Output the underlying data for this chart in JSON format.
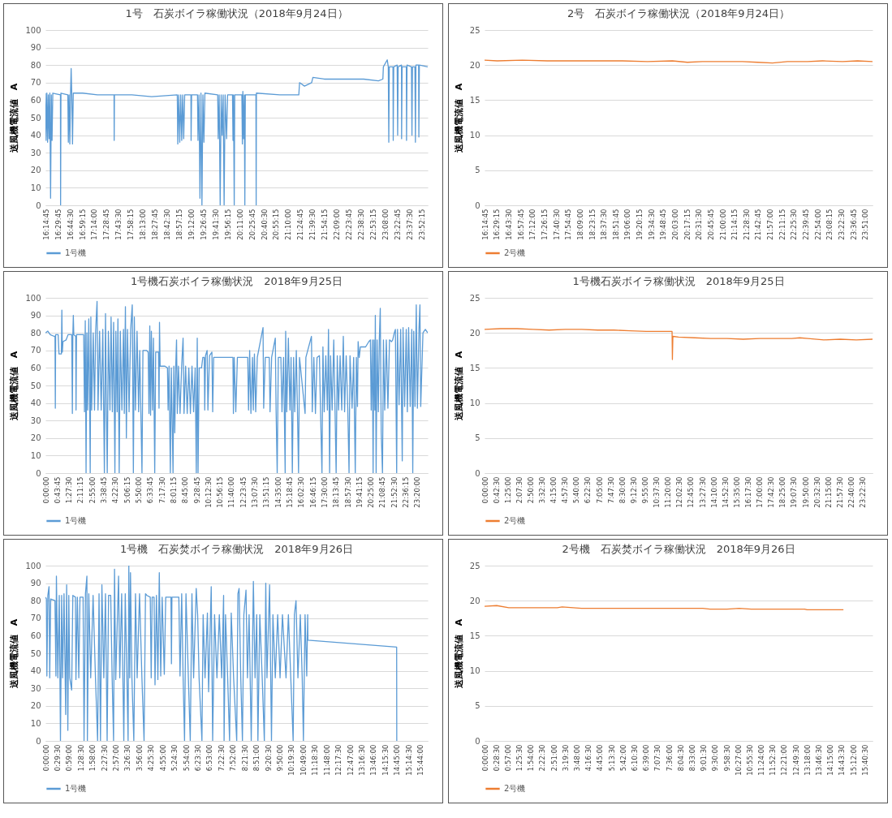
{
  "chart_data": [
    {
      "type": "line",
      "title": "1号　石炭ボイラ稼働状況（2018年9月24日）",
      "ylabel": "送風機電流値　A",
      "grid": "y",
      "legend": "bottom",
      "xlim": [
        16.24583,
        24
      ],
      "ylim": [
        0,
        100
      ],
      "yticks": [
        0,
        10,
        20,
        30,
        40,
        50,
        60,
        70,
        80,
        90,
        100
      ],
      "xticks": [
        {
          "value": 16.24583,
          "label": "16:14:45"
        },
        {
          "value": 16.49583,
          "label": "16:29:45"
        },
        {
          "value": 16.74167,
          "label": "16:44:30"
        },
        {
          "value": 16.9875,
          "label": "16:59:15"
        },
        {
          "value": 17.23333,
          "label": "17:14:00"
        },
        {
          "value": 17.47917,
          "label": "17:28:45"
        },
        {
          "value": 17.725,
          "label": "17:43:30"
        },
        {
          "value": 17.97083,
          "label": "17:58:15"
        },
        {
          "value": 18.21667,
          "label": "18:13:00"
        },
        {
          "value": 18.4625,
          "label": "18:27:45"
        },
        {
          "value": 18.70833,
          "label": "18:42:30"
        },
        {
          "value": 18.95417,
          "label": "18:57:15"
        },
        {
          "value": 19.2,
          "label": "19:12:00"
        },
        {
          "value": 19.44583,
          "label": "19:26:45"
        },
        {
          "value": 19.69167,
          "label": "19:41:30"
        },
        {
          "value": 19.9375,
          "label": "19:56:15"
        },
        {
          "value": 20.18333,
          "label": "20:11:00"
        },
        {
          "value": 20.42917,
          "label": "20:25:45"
        },
        {
          "value": 20.675,
          "label": "20:40:30"
        },
        {
          "value": 20.92083,
          "label": "20:55:15"
        },
        {
          "value": 21.16667,
          "label": "21:10:00"
        },
        {
          "value": 21.4125,
          "label": "21:24:45"
        },
        {
          "value": 21.65833,
          "label": "21:39:30"
        },
        {
          "value": 21.90417,
          "label": "21:54:15"
        },
        {
          "value": 22.15,
          "label": "22:09:00"
        },
        {
          "value": 22.39583,
          "label": "22:23:45"
        },
        {
          "value": 22.64167,
          "label": "22:38:30"
        },
        {
          "value": 22.8875,
          "label": "22:53:15"
        },
        {
          "value": 23.13333,
          "label": "23:08:00"
        },
        {
          "value": 23.37917,
          "label": "23:22:45"
        },
        {
          "value": 23.625,
          "label": "23:37:30"
        },
        {
          "value": 23.87083,
          "label": "23:52:15"
        }
      ],
      "series": [
        {
          "name": "1号機",
          "color": "#5b9bd5",
          "x": [
            16.246,
            16.26,
            16.275,
            16.29,
            16.305,
            16.32,
            16.335,
            16.35,
            16.365,
            16.38,
            16.395,
            16.55,
            16.553,
            16.56,
            16.7,
            16.71,
            16.725,
            16.74,
            16.755,
            16.767,
            16.78,
            16.795,
            16.81,
            17.0,
            17.3,
            17.637,
            17.64,
            17.645,
            18.0,
            18.4,
            18.92,
            18.93,
            18.95,
            18.97,
            18.99,
            19.01,
            19.03,
            19.05,
            19.07,
            19.197,
            19.2,
            19.21,
            19.33,
            19.34,
            19.36,
            19.38,
            19.4,
            19.42,
            19.44,
            19.46,
            19.48,
            19.74,
            19.75,
            19.77,
            19.79,
            19.81,
            19.83,
            19.85,
            19.87,
            19.89,
            19.92,
            19.94,
            20.04,
            20.05,
            20.06,
            20.075,
            20.085,
            20.23,
            20.24,
            20.25,
            20.265,
            20.28,
            20.29,
            20.3,
            20.515,
            20.52,
            20.525,
            21.0,
            21.385,
            21.4,
            21.5,
            21.645,
            21.67,
            21.9,
            22.3,
            22.7,
            23.0,
            23.09,
            23.1,
            23.179,
            23.2,
            23.21,
            23.22,
            23.295,
            23.3,
            23.31,
            23.38,
            23.39,
            23.4,
            23.468,
            23.47,
            23.48,
            23.566,
            23.57,
            23.58,
            23.67,
            23.68,
            23.69,
            23.74,
            23.75,
            23.76,
            23.815,
            23.82,
            23.83,
            24.0
          ],
          "values": [
            64,
            37,
            64,
            36,
            63,
            38,
            64,
            4,
            63,
            37,
            64,
            63,
            0,
            64,
            63,
            36,
            63,
            35,
            64,
            78,
            63,
            35,
            64,
            64,
            63,
            63,
            37,
            63,
            63,
            62,
            63,
            35,
            63,
            36,
            63,
            37,
            63,
            38,
            63,
            63,
            37,
            63,
            63,
            37,
            63,
            4,
            64,
            0,
            63,
            36,
            64,
            63,
            38,
            63,
            0,
            63,
            40,
            63,
            0,
            63,
            38,
            63,
            63,
            37,
            63,
            0,
            63,
            63,
            35,
            65,
            38,
            63,
            0,
            63,
            63,
            0,
            64,
            63,
            63,
            70,
            68,
            70,
            73,
            72,
            72,
            72,
            71,
            72,
            79,
            83,
            79,
            36,
            79,
            79,
            37,
            79,
            80,
            40,
            79,
            80,
            38,
            79,
            79,
            37,
            80,
            79,
            40,
            79,
            79,
            36,
            80,
            80,
            39,
            80,
            79
          ]
        }
      ]
    },
    {
      "type": "line",
      "title": "2号　石炭ボイラ稼働状況（2018年9月24日）",
      "ylabel": "送風機電流値　A",
      "grid": "y",
      "legend": "bottom",
      "xlim": [
        16.24583,
        24
      ],
      "ylim": [
        0,
        25
      ],
      "yticks": [
        0,
        5,
        10,
        15,
        20,
        25
      ],
      "xticks": [
        {
          "value": 16.24583,
          "label": "16:14:45"
        },
        {
          "value": 16.4875,
          "label": "16:29:15"
        },
        {
          "value": 16.725,
          "label": "16:43:30"
        },
        {
          "value": 16.9625,
          "label": "16:57:45"
        },
        {
          "value": 17.2,
          "label": "17:12:00"
        },
        {
          "value": 17.4375,
          "label": "17:26:15"
        },
        {
          "value": 17.675,
          "label": "17:40:30"
        },
        {
          "value": 17.9125,
          "label": "17:54:45"
        },
        {
          "value": 18.15,
          "label": "18:09:00"
        },
        {
          "value": 18.3875,
          "label": "18:23:15"
        },
        {
          "value": 18.625,
          "label": "18:37:30"
        },
        {
          "value": 18.8625,
          "label": "18:51:45"
        },
        {
          "value": 19.1,
          "label": "19:06:00"
        },
        {
          "value": 19.3375,
          "label": "19:20:15"
        },
        {
          "value": 19.575,
          "label": "19:34:30"
        },
        {
          "value": 19.8125,
          "label": "19:48:45"
        },
        {
          "value": 20.05,
          "label": "20:03:00"
        },
        {
          "value": 20.2875,
          "label": "20:17:15"
        },
        {
          "value": 20.525,
          "label": "20:31:30"
        },
        {
          "value": 20.7625,
          "label": "20:45:45"
        },
        {
          "value": 21.0,
          "label": "21:00:00"
        },
        {
          "value": 21.2375,
          "label": "21:14:15"
        },
        {
          "value": 21.475,
          "label": "21:28:30"
        },
        {
          "value": 21.7125,
          "label": "21:42:45"
        },
        {
          "value": 21.95,
          "label": "21:57:00"
        },
        {
          "value": 22.1875,
          "label": "22:11:15"
        },
        {
          "value": 22.425,
          "label": "22:25:30"
        },
        {
          "value": 22.6625,
          "label": "22:39:45"
        },
        {
          "value": 22.9,
          "label": "22:54:00"
        },
        {
          "value": 23.1375,
          "label": "23:08:15"
        },
        {
          "value": 23.375,
          "label": "23:22:30"
        },
        {
          "value": 23.6125,
          "label": "23:36:45"
        },
        {
          "value": 23.85,
          "label": "23:51:00"
        }
      ],
      "series": [
        {
          "name": "2号機",
          "color": "#ed7d31",
          "x": [
            16.246,
            16.5,
            17.0,
            17.5,
            18.0,
            18.5,
            19.0,
            19.5,
            20.0,
            20.3,
            20.6,
            21.0,
            21.4,
            21.7,
            22.0,
            22.3,
            22.7,
            23.0,
            23.4,
            23.7,
            24.0
          ],
          "values": [
            20.7,
            20.6,
            20.7,
            20.6,
            20.6,
            20.6,
            20.6,
            20.5,
            20.6,
            20.4,
            20.5,
            20.5,
            20.5,
            20.4,
            20.3,
            20.5,
            20.5,
            20.6,
            20.5,
            20.6,
            20.5
          ]
        }
      ]
    },
    {
      "type": "line",
      "title": "1号機石炭ボイラ稼働状況　2018年9月25日",
      "ylabel": "送風機電流値　A",
      "grid": "y",
      "legend": "bottom",
      "xlim": [
        0,
        24
      ],
      "ylim": [
        0,
        100
      ],
      "yticks": [
        0,
        10,
        20,
        30,
        40,
        50,
        60,
        70,
        80,
        90,
        100
      ],
      "xticks": [
        {
          "value": 0,
          "label": "0:00:00"
        },
        {
          "value": 0.72917,
          "label": "0:43:45"
        },
        {
          "value": 1.45833,
          "label": "1:27:30"
        },
        {
          "value": 2.1875,
          "label": "2:11:15"
        },
        {
          "value": 2.91667,
          "label": "2:55:00"
        },
        {
          "value": 3.64583,
          "label": "3:38:45"
        },
        {
          "value": 4.375,
          "label": "4:22:30"
        },
        {
          "value": 5.10417,
          "label": "5:06:15"
        },
        {
          "value": 5.83333,
          "label": "5:50:00"
        },
        {
          "value": 6.5625,
          "label": "6:33:45"
        },
        {
          "value": 7.29167,
          "label": "7:17:30"
        },
        {
          "value": 8.02083,
          "label": "8:01:15"
        },
        {
          "value": 8.75,
          "label": "8:45:00"
        },
        {
          "value": 9.47917,
          "label": "9:28:45"
        },
        {
          "value": 10.20833,
          "label": "10:12:30"
        },
        {
          "value": 10.9375,
          "label": "10:56:15"
        },
        {
          "value": 11.66667,
          "label": "11:40:00"
        },
        {
          "value": 12.39583,
          "label": "12:23:45"
        },
        {
          "value": 13.125,
          "label": "13:07:30"
        },
        {
          "value": 13.85417,
          "label": "13:51:15"
        },
        {
          "value": 14.58333,
          "label": "14:35:00"
        },
        {
          "value": 15.3125,
          "label": "15:18:45"
        },
        {
          "value": 16.04167,
          "label": "16:02:30"
        },
        {
          "value": 16.77083,
          "label": "16:46:15"
        },
        {
          "value": 17.5,
          "label": "17:30:00"
        },
        {
          "value": 18.22917,
          "label": "18:13:45"
        },
        {
          "value": 18.95833,
          "label": "18:57:30"
        },
        {
          "value": 19.6875,
          "label": "19:41:15"
        },
        {
          "value": 20.41667,
          "label": "20:25:00"
        },
        {
          "value": 21.14583,
          "label": "21:08:45"
        },
        {
          "value": 21.875,
          "label": "21:52:30"
        },
        {
          "value": 22.60417,
          "label": "22:36:15"
        },
        {
          "value": 23.33333,
          "label": "23:20:00"
        }
      ],
      "series": [
        {
          "name": "1号機",
          "color": "#5b9bd5",
          "x": [
            0,
            0.15,
            0.3,
            0.55,
            0.6,
            0.62,
            0.64,
            0.8,
            0.85,
            1.0,
            1.03,
            1.06,
            1.1,
            1.3,
            1.42,
            1.65,
            1.69,
            1.72,
            1.75,
            1.78,
            1.9,
            1.92,
            1.95,
            2.4,
            2.45,
            2.5,
            2.55,
            2.6,
            2.65,
            2.72,
            2.78,
            2.81,
            2.85,
            2.9,
            3.0,
            3.08,
            3.15,
            3.24,
            3.3,
            3.4,
            3.5,
            3.6,
            3.7,
            3.77,
            3.83,
            3.88,
            3.95,
            4.05,
            4.12,
            4.2,
            4.28,
            4.36,
            4.42,
            4.5,
            4.55,
            4.63,
            4.7,
            4.8,
            4.9,
            4.95,
            5.02,
            5.08,
            5.15,
            5.25,
            5.35,
            5.45,
            5.52,
            5.58,
            5.65,
            5.75,
            5.85,
            5.92,
            6.06,
            6.12,
            6.35,
            6.45,
            6.5,
            6.55,
            6.6,
            6.65,
            6.72,
            6.78,
            6.86,
            6.92,
            7.1,
            7.13,
            7.16,
            7.2,
            7.5,
            7.66,
            7.7,
            7.76,
            7.84,
            7.9,
            8.01,
            8.06,
            8.12,
            8.18,
            8.23,
            8.28,
            8.35,
            8.45,
            8.55,
            8.64,
            8.7,
            8.8,
            8.9,
            9.0,
            9.1,
            9.2,
            9.3,
            9.4,
            9.47,
            9.53,
            9.58,
            9.65,
            9.8,
            9.88,
            9.97,
            10.0,
            10.05,
            10.15,
            10.2,
            10.3,
            10.45,
            10.5,
            10.56,
            11.5,
            11.77,
            11.8,
            11.85,
            11.95,
            12.05,
            12.7,
            12.75,
            12.82,
            12.9,
            13.0,
            13.05,
            13.12,
            13.2,
            13.3,
            13.66,
            13.7,
            13.8,
            14.05,
            14.1,
            14.2,
            14.43,
            14.48,
            14.55,
            14.62,
            14.78,
            14.85,
            14.95,
            15.05,
            15.08,
            15.15,
            15.25,
            15.35,
            15.42,
            15.5,
            15.58,
            15.65,
            15.75,
            15.82,
            15.89,
            15.95,
            16.3,
            16.35,
            16.7,
            16.75,
            16.85,
            16.95,
            17.05,
            17.2,
            17.27,
            17.36,
            17.42,
            17.5,
            17.6,
            17.7,
            17.77,
            17.84,
            17.9,
            18.0,
            18.1,
            18.18,
            18.25,
            18.32,
            18.4,
            18.5,
            18.6,
            18.7,
            18.78,
            18.88,
            18.98,
            19.06,
            19.12,
            19.25,
            19.35,
            19.45,
            19.52,
            19.59,
            19.63,
            19.7,
            19.77,
            20.1,
            20.3,
            20.4,
            20.45,
            20.52,
            20.57,
            20.62,
            20.68,
            20.71,
            20.76,
            20.82,
            20.9,
            20.96,
            21.02,
            21.08,
            21.16,
            21.22,
            21.3,
            21.4,
            21.5,
            21.6,
            21.73,
            21.8,
            21.9,
            21.97,
            22.05,
            22.1,
            22.2,
            22.3,
            22.4,
            22.45,
            22.55,
            22.65,
            22.72,
            22.8,
            22.9,
            23.0,
            23.06,
            23.12,
            23.2,
            23.28,
            23.35,
            23.45,
            23.51,
            23.56,
            23.7,
            23.85,
            24.0
          ],
          "values": [
            80,
            81,
            79,
            78,
            78,
            37,
            79,
            79,
            68,
            68,
            93,
            69,
            75,
            76,
            79,
            79,
            34,
            79,
            90,
            79,
            78,
            36,
            79,
            79,
            35,
            87,
            0,
            80,
            36,
            88,
            35,
            0,
            89,
            36,
            80,
            36,
            81,
            98,
            36,
            81,
            36,
            82,
            0,
            91,
            35,
            0,
            81,
            36,
            89,
            35,
            86,
            0,
            81,
            35,
            88,
            0,
            81,
            36,
            82,
            34,
            95,
            20,
            82,
            35,
            82,
            96,
            0,
            89,
            36,
            81,
            35,
            70,
            0,
            70,
            70,
            69,
            34,
            84,
            33,
            81,
            36,
            77,
            0,
            69,
            69,
            37,
            86,
            61,
            61,
            60,
            36,
            61,
            0,
            60,
            0,
            61,
            23,
            61,
            76,
            34,
            61,
            34,
            61,
            77,
            34,
            61,
            34,
            60,
            34,
            61,
            35,
            60,
            0,
            77,
            0,
            60,
            60,
            66,
            66,
            36,
            67,
            70,
            36,
            67,
            69,
            35,
            66,
            66,
            66,
            34,
            66,
            35,
            66,
            66,
            36,
            70,
            34,
            66,
            36,
            68,
            35,
            66,
            83,
            37,
            66,
            66,
            35,
            66,
            77,
            36,
            0,
            66,
            66,
            35,
            66,
            0,
            81,
            35,
            77,
            36,
            66,
            0,
            66,
            35,
            70,
            36,
            0,
            66,
            34,
            66,
            78,
            35,
            66,
            34,
            66,
            67,
            35,
            0,
            72,
            35,
            67,
            36,
            82,
            0,
            67,
            36,
            76,
            36,
            0,
            67,
            36,
            67,
            36,
            78,
            35,
            67,
            37,
            0,
            67,
            37,
            66,
            0,
            66,
            38,
            75,
            66,
            72,
            72,
            75,
            76,
            36,
            76,
            0,
            76,
            36,
            90,
            0,
            76,
            35,
            76,
            94,
            23,
            0,
            76,
            36,
            76,
            37,
            76,
            75,
            76,
            80,
            82,
            0,
            82,
            39,
            82,
            7,
            83,
            38,
            82,
            35,
            83,
            38,
            82,
            0,
            81,
            38,
            96,
            37,
            82,
            96,
            38,
            80,
            82,
            80
          ]
        }
      ]
    },
    {
      "type": "line",
      "title": "1号機石炭ボイラ稼働状況　2018年9月25日",
      "ylabel": "送風機電流値　A",
      "grid": "y",
      "legend": "bottom",
      "xlim": [
        0,
        24
      ],
      "ylim": [
        0,
        25
      ],
      "yticks": [
        0,
        5,
        10,
        15,
        20,
        25
      ],
      "xticks": [
        {
          "value": 0,
          "label": "0:00:00"
        },
        {
          "value": 0.70833,
          "label": "0:42:30"
        },
        {
          "value": 1.41667,
          "label": "1:25:00"
        },
        {
          "value": 2.125,
          "label": "2:07:30"
        },
        {
          "value": 2.83333,
          "label": "2:50:00"
        },
        {
          "value": 3.54167,
          "label": "3:32:30"
        },
        {
          "value": 4.25,
          "label": "4:15:00"
        },
        {
          "value": 4.95833,
          "label": "4:57:30"
        },
        {
          "value": 5.66667,
          "label": "5:40:00"
        },
        {
          "value": 6.375,
          "label": "6:22:30"
        },
        {
          "value": 7.08333,
          "label": "7:05:00"
        },
        {
          "value": 7.79167,
          "label": "7:47:30"
        },
        {
          "value": 8.5,
          "label": "8:30:00"
        },
        {
          "value": 9.20833,
          "label": "9:12:30"
        },
        {
          "value": 9.91667,
          "label": "9:55:00"
        },
        {
          "value": 10.625,
          "label": "10:37:30"
        },
        {
          "value": 11.33333,
          "label": "11:20:00"
        },
        {
          "value": 12.04167,
          "label": "12:02:30"
        },
        {
          "value": 12.75,
          "label": "12:45:00"
        },
        {
          "value": 13.45833,
          "label": "13:27:30"
        },
        {
          "value": 14.16667,
          "label": "14:10:00"
        },
        {
          "value": 14.875,
          "label": "14:52:30"
        },
        {
          "value": 15.58333,
          "label": "15:35:00"
        },
        {
          "value": 16.29167,
          "label": "16:17:30"
        },
        {
          "value": 17.0,
          "label": "17:00:00"
        },
        {
          "value": 17.70833,
          "label": "17:42:30"
        },
        {
          "value": 18.41667,
          "label": "18:25:00"
        },
        {
          "value": 19.125,
          "label": "19:07:30"
        },
        {
          "value": 19.83333,
          "label": "19:50:00"
        },
        {
          "value": 20.54167,
          "label": "20:32:30"
        },
        {
          "value": 21.25,
          "label": "21:15:00"
        },
        {
          "value": 21.95833,
          "label": "21:57:30"
        },
        {
          "value": 22.66667,
          "label": "22:40:00"
        },
        {
          "value": 23.375,
          "label": "23:22:30"
        }
      ],
      "series": [
        {
          "name": "2号機",
          "color": "#ed7d31",
          "x": [
            0,
            1.0,
            2,
            3,
            4,
            5,
            6,
            7,
            8,
            9,
            10,
            11,
            11.6,
            11.62,
            11.65,
            12,
            13,
            14,
            15,
            16,
            17,
            18,
            19,
            19.5,
            20,
            21,
            22,
            23,
            24
          ],
          "values": [
            20.5,
            20.6,
            20.6,
            20.5,
            20.4,
            20.5,
            20.5,
            20.4,
            20.4,
            20.3,
            20.2,
            20.2,
            20.2,
            16.2,
            19.5,
            19.4,
            19.3,
            19.2,
            19.2,
            19.1,
            19.2,
            19.2,
            19.2,
            19.3,
            19.2,
            19.0,
            19.1,
            19.0,
            19.1
          ]
        }
      ]
    },
    {
      "type": "line",
      "title": "1号機　石炭焚ボイラ稼働状況　2018年9月26日",
      "ylabel": "送風機電流値　A",
      "grid": "y",
      "legend": "bottom",
      "xlim": [
        0,
        16.05
      ],
      "ylim": [
        0,
        100
      ],
      "yticks": [
        0,
        10,
        20,
        30,
        40,
        50,
        60,
        70,
        80,
        90,
        100
      ],
      "xticks": [
        {
          "value": 0,
          "label": "0:00:00"
        },
        {
          "value": 0.49167,
          "label": "0:29:30"
        },
        {
          "value": 0.98333,
          "label": "0:59:00"
        },
        {
          "value": 1.475,
          "label": "1:28:30"
        },
        {
          "value": 1.96667,
          "label": "1:58:00"
        },
        {
          "value": 2.45833,
          "label": "2:27:30"
        },
        {
          "value": 2.95,
          "label": "2:57:00"
        },
        {
          "value": 3.44167,
          "label": "3:26:30"
        },
        {
          "value": 3.93333,
          "label": "3:56:00"
        },
        {
          "value": 4.425,
          "label": "4:25:30"
        },
        {
          "value": 4.91667,
          "label": "4:55:00"
        },
        {
          "value": 5.40833,
          "label": "5:24:30"
        },
        {
          "value": 5.9,
          "label": "5:54:00"
        },
        {
          "value": 6.39167,
          "label": "6:23:30"
        },
        {
          "value": 6.88333,
          "label": "6:53:00"
        },
        {
          "value": 7.375,
          "label": "7:22:30"
        },
        {
          "value": 7.86667,
          "label": "7:52:00"
        },
        {
          "value": 8.35833,
          "label": "8:21:30"
        },
        {
          "value": 8.85,
          "label": "8:51:00"
        },
        {
          "value": 9.34167,
          "label": "9:20:30"
        },
        {
          "value": 9.83333,
          "label": "9:50:00"
        },
        {
          "value": 10.325,
          "label": "10:19:30"
        },
        {
          "value": 10.81667,
          "label": "10:49:00"
        },
        {
          "value": 11.30833,
          "label": "11:18:30"
        },
        {
          "value": 11.8,
          "label": "11:48:00"
        },
        {
          "value": 12.29167,
          "label": "12:17:30"
        },
        {
          "value": 12.78333,
          "label": "12:47:00"
        },
        {
          "value": 13.275,
          "label": "13:16:30"
        },
        {
          "value": 13.76667,
          "label": "13:46:00"
        },
        {
          "value": 14.25833,
          "label": "14:15:30"
        },
        {
          "value": 14.75,
          "label": "14:45:00"
        },
        {
          "value": 15.24167,
          "label": "15:14:30"
        },
        {
          "value": 15.73333,
          "label": "15:44:00"
        }
      ],
      "series": [
        {
          "name": "1号機",
          "color": "#5b9bd5",
          "x": [
            0,
            0.04,
            0.06,
            0.1,
            0.15,
            0.18,
            0.22,
            0.4,
            0.44,
            0.46,
            0.52,
            0.58,
            0.63,
            0.68,
            0.72,
            0.78,
            0.85,
            0.89,
            0.94,
            0.98,
            1.02,
            1.1,
            1.15,
            1.26,
            1.28,
            1.34,
            1.4,
            1.45,
            1.58,
            1.62,
            1.68,
            1.74,
            1.76,
            1.82,
            1.9,
            2.0,
            2.1,
            2.19,
            2.25,
            2.31,
            2.37,
            2.45,
            2.52,
            2.59,
            2.65,
            2.74,
            2.8,
            2.86,
            2.9,
            2.95,
            3.07,
            3.12,
            3.2,
            3.29,
            3.35,
            3.42,
            3.47,
            3.5,
            3.54,
            3.57,
            3.63,
            3.71,
            3.78,
            3.85,
            3.95,
            4.05,
            4.14,
            4.2,
            4.26,
            4.4,
            4.44,
            4.48,
            4.56,
            4.6,
            4.66,
            4.72,
            4.78,
            4.84,
            4.9,
            4.99,
            5.05,
            5.27,
            5.29,
            5.31,
            5.6,
            5.65,
            5.72,
            5.78,
            5.84,
            5.9,
            6.0,
            6.08,
            6.15,
            6.22,
            6.33,
            6.39,
            6.45,
            6.57,
            6.62,
            6.7,
            6.8,
            6.85,
            6.96,
            7.02,
            7.1,
            7.2,
            7.3,
            7.4,
            7.48,
            7.5,
            7.56,
            7.65,
            7.73,
            7.8,
            7.9,
            8.03,
            8.08,
            8.13,
            8.2,
            8.27,
            8.33,
            8.42,
            8.48,
            8.55,
            8.64,
            8.73,
            8.8,
            8.87,
            8.92,
            9.0,
            9.1,
            9.19,
            9.25,
            9.3,
            9.41,
            9.49,
            9.55,
            9.65,
            9.75,
            9.85,
            9.95,
            10.1,
            10.2,
            10.3,
            10.4,
            10.45,
            10.52,
            10.6,
            10.7,
            10.78,
            10.83,
            10.9,
            10.97,
            11.01,
            11.02,
            14.745,
            14.75
          ],
          "values": [
            82,
            81,
            37,
            83,
            88,
            36,
            81,
            80,
            37,
            94,
            36,
            83,
            0,
            83,
            36,
            84,
            15,
            89,
            6,
            83,
            36,
            29,
            83,
            82,
            35,
            82,
            36,
            82,
            82,
            0,
            84,
            94,
            0,
            84,
            36,
            83,
            36,
            0,
            84,
            0,
            89,
            36,
            84,
            0,
            83,
            83,
            36,
            0,
            98,
            35,
            94,
            36,
            84,
            0,
            84,
            36,
            0,
            100,
            36,
            96,
            36,
            0,
            84,
            36,
            84,
            36,
            0,
            84,
            83,
            82,
            36,
            82,
            82,
            32,
            83,
            35,
            96,
            37,
            82,
            38,
            82,
            82,
            44,
            82,
            82,
            37,
            84,
            36,
            0,
            84,
            36,
            0,
            84,
            36,
            87,
            72,
            36,
            0,
            72,
            36,
            73,
            28,
            88,
            0,
            72,
            36,
            72,
            36,
            83,
            0,
            72,
            36,
            0,
            73,
            36,
            0,
            84,
            87,
            36,
            0,
            72,
            86,
            36,
            72,
            0,
            91,
            36,
            72,
            0,
            72,
            36,
            0,
            90,
            36,
            89,
            0,
            72,
            36,
            72,
            36,
            72,
            36,
            72,
            36,
            0,
            72,
            80,
            36,
            72,
            36,
            0,
            72,
            37,
            72,
            57.5,
            53.5,
            0
          ]
        }
      ]
    },
    {
      "type": "line",
      "title": "2号機　石炭焚ボイラ稼働状況　2018年9月26日",
      "ylabel": "送風機電流値　A",
      "grid": "y",
      "legend": "bottom",
      "xlim": [
        0,
        16
      ],
      "ylim": [
        0,
        25
      ],
      "yticks": [
        0,
        5,
        10,
        15,
        20,
        25
      ],
      "xticks": [
        {
          "value": 0,
          "label": "0:00:00"
        },
        {
          "value": 0.475,
          "label": "0:28:30"
        },
        {
          "value": 0.95,
          "label": "0:57:00"
        },
        {
          "value": 1.425,
          "label": "1:25:30"
        },
        {
          "value": 1.9,
          "label": "1:54:00"
        },
        {
          "value": 2.375,
          "label": "2:22:30"
        },
        {
          "value": 2.85,
          "label": "2:51:00"
        },
        {
          "value": 3.325,
          "label": "3:19:30"
        },
        {
          "value": 3.8,
          "label": "3:48:00"
        },
        {
          "value": 4.275,
          "label": "4:16:30"
        },
        {
          "value": 4.75,
          "label": "4:45:00"
        },
        {
          "value": 5.225,
          "label": "5:13:30"
        },
        {
          "value": 5.7,
          "label": "5:42:00"
        },
        {
          "value": 6.175,
          "label": "6:10:30"
        },
        {
          "value": 6.65,
          "label": "6:39:00"
        },
        {
          "value": 7.125,
          "label": "7:07:30"
        },
        {
          "value": 7.6,
          "label": "7:36:00"
        },
        {
          "value": 8.075,
          "label": "8:04:30"
        },
        {
          "value": 8.55,
          "label": "8:33:00"
        },
        {
          "value": 9.025,
          "label": "9:01:30"
        },
        {
          "value": 9.5,
          "label": "9:30:00"
        },
        {
          "value": 9.975,
          "label": "9:58:30"
        },
        {
          "value": 10.45,
          "label": "10:27:00"
        },
        {
          "value": 10.925,
          "label": "10:55:30"
        },
        {
          "value": 11.4,
          "label": "11:24:00"
        },
        {
          "value": 11.875,
          "label": "11:52:30"
        },
        {
          "value": 12.35,
          "label": "12:21:00"
        },
        {
          "value": 12.825,
          "label": "12:49:30"
        },
        {
          "value": 13.3,
          "label": "13:18:00"
        },
        {
          "value": 13.775,
          "label": "13:46:30"
        },
        {
          "value": 14.25,
          "label": "14:15:00"
        },
        {
          "value": 14.725,
          "label": "14:43:30"
        },
        {
          "value": 15.2,
          "label": "15:12:00"
        },
        {
          "value": 15.675,
          "label": "15:40:30"
        }
      ],
      "series": [
        {
          "name": "2号機",
          "color": "#ed7d31",
          "x": [
            0,
            0.5,
            1.0,
            2.0,
            3.0,
            3.2,
            4.0,
            5.0,
            6.0,
            7.0,
            8.0,
            9.0,
            9.3,
            10.0,
            10.5,
            11.0,
            12.0,
            13.2,
            13.3,
            14.8
          ],
          "values": [
            19.2,
            19.3,
            19.0,
            19.0,
            19.0,
            19.1,
            18.9,
            18.9,
            18.9,
            18.9,
            18.9,
            18.9,
            18.8,
            18.8,
            18.9,
            18.8,
            18.8,
            18.8,
            18.7,
            18.7
          ]
        }
      ]
    }
  ]
}
